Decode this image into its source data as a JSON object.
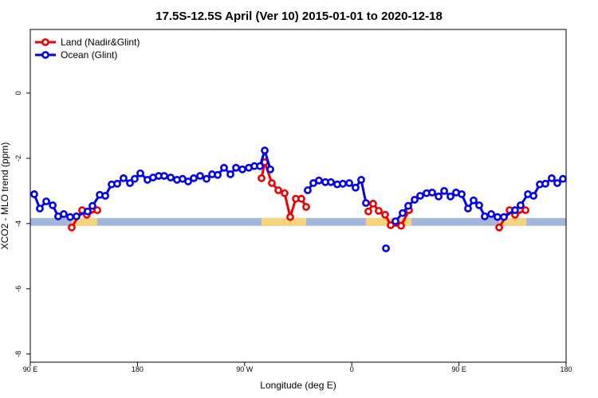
{
  "chart_data": {
    "type": "line",
    "title": "17.5S-12.5S April (Ver 10)   2015-01-01 to 2020-12-18",
    "xlabel": "Longitude (deg E)",
    "ylabel": "XCO2 - MLO trend (ppm)",
    "xlim": [
      90,
      540
    ],
    "ylim": [
      -8.25,
      1.95
    ],
    "xticks": [
      {
        "value": 90,
        "label": "90 E"
      },
      180,
      {
        "value": 270,
        "label": "90 W"
      },
      {
        "value": 360,
        "label": "0"
      },
      {
        "value": 450,
        "label": "90 E"
      },
      {
        "value": 540,
        "label": "180"
      }
    ],
    "yticks": [
      -8,
      -6,
      -4,
      -2,
      0
    ],
    "legend": "top-left",
    "surface_band": {
      "range": [
        -4.07,
        -3.83
      ],
      "ocean_color": "#a3b7db",
      "land_color": "#f6d47c",
      "land": [
        [
          124.8,
          146.3
        ],
        [
          284.2,
          321.7
        ],
        [
          371.9,
          410
        ],
        [
          483.8,
          506.6
        ]
      ]
    },
    "series": [
      {
        "name": "Land (Nadir&Glint)",
        "color": "#ee0000",
        "x": [
          124.8,
          133.5,
          137.5,
          146.3,
          null,
          284.2,
          286.9,
          292.9,
          298.3,
          303.6,
          308.3,
          313.0,
          317.7,
          321.7,
          null,
          373.9,
          377.9,
          382.6,
          388.0,
          392.7,
          401.4,
          408.1,
          null,
          483.8,
          492.5,
          497.1,
          505.9
        ],
        "values": [
          -4.12,
          -3.59,
          -3.73,
          -3.59,
          null,
          -2.61,
          -2.12,
          -2.76,
          -2.98,
          -3.07,
          -3.8,
          -3.24,
          -3.24,
          -3.49,
          null,
          -3.63,
          -3.39,
          -3.61,
          -3.73,
          -4.05,
          -4.07,
          -3.59,
          null,
          -4.12,
          -3.59,
          -3.73,
          -3.59
        ]
      },
      {
        "name": "Ocean (Glint)",
        "color": "#0000ee",
        "x": [
          93.3,
          98,
          103.4,
          108.8,
          113.4,
          118.1,
          123.5,
          128.8,
          138.2,
          142.2,
          148.3,
          153,
          158.3,
          163,
          168.3,
          173.7,
          177.7,
          182.4,
          188.4,
          193.1,
          197.8,
          202.5,
          207.9,
          213.2,
          217.9,
          222.6,
          227.3,
          232.6,
          238,
          242.7,
          247.4,
          252.7,
          258.1,
          262.8,
          268.1,
          273.5,
          278.2,
          282.9,
          286.9,
          291.6,
          null,
          323,
          327.7,
          332.4,
          337.8,
          342.5,
          347.8,
          352.5,
          357.9,
          363.2,
          367.9,
          371.9,
          null,
          388.7,
          null,
          396.7,
          402.7,
          407.4,
          412.8,
          417.5,
          422.8,
          427.5,
          432.9,
          437.6,
          442.9,
          447.6,
          452.3,
          457.6,
          462.3,
          467.0,
          471.7,
          477.1,
          482.4,
          487.8,
          497.1,
          501.8,
          507.9,
          512.6,
          517.9,
          522.6,
          527.9,
          532.6,
          537.3
        ],
        "values": [
          -3.1,
          -3.54,
          -3.32,
          -3.44,
          -3.78,
          -3.71,
          -3.8,
          -3.78,
          -3.63,
          -3.46,
          -3.12,
          -3.15,
          -2.8,
          -2.78,
          -2.61,
          -2.76,
          -2.63,
          -2.46,
          -2.66,
          -2.59,
          -2.54,
          -2.54,
          -2.59,
          -2.66,
          -2.63,
          -2.71,
          -2.61,
          -2.54,
          -2.63,
          -2.49,
          -2.51,
          -2.29,
          -2.49,
          -2.29,
          -2.34,
          -2.29,
          -2.24,
          -2.24,
          -1.76,
          -2.34,
          null,
          -2.98,
          -2.76,
          -2.68,
          -2.73,
          -2.73,
          -2.8,
          -2.78,
          -2.76,
          -2.9,
          -2.66,
          -3.37,
          null,
          -4.76,
          null,
          -3.93,
          -3.68,
          -3.46,
          -3.27,
          -3.15,
          -3.07,
          -3.05,
          -3.17,
          -3.0,
          -3.17,
          -3.05,
          -3.1,
          -3.54,
          -3.29,
          -3.44,
          -3.78,
          -3.71,
          -3.8,
          -3.8,
          -3.59,
          -3.44,
          -3.1,
          -3.15,
          -2.8,
          -2.78,
          -2.61,
          -2.76,
          -2.63
        ]
      }
    ]
  }
}
